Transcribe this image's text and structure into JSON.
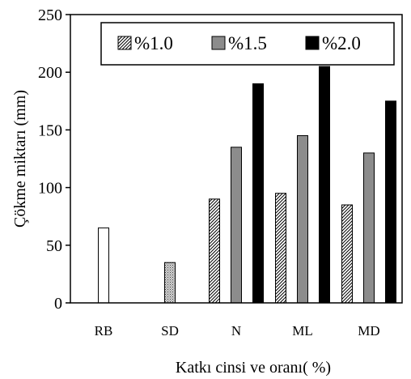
{
  "chart_data": {
    "type": "bar",
    "title": "",
    "xlabel": "Katkı cinsi ve oranı( %)",
    "ylabel": "Çökme miktarı (mm)",
    "ylim": [
      0,
      250
    ],
    "yticks": [
      "0",
      "50",
      "100",
      "150",
      "200",
      "250"
    ],
    "categories": [
      "RB",
      "SD",
      "N",
      "ML",
      "MD"
    ],
    "grid": false,
    "legend_position": "top-right",
    "series": [
      {
        "name": "%1.0",
        "values": [
          null,
          null,
          90,
          95,
          85
        ],
        "pattern": "diagonal-hatch",
        "color": "#000000"
      },
      {
        "name": "%1.5",
        "values": [
          null,
          null,
          135,
          145,
          130
        ],
        "pattern": "solid",
        "color": "#8c8c8c"
      },
      {
        "name": "%2.0",
        "values": [
          null,
          null,
          190,
          205,
          175
        ],
        "pattern": "solid",
        "color": "#000000"
      }
    ],
    "extra_bars": [
      {
        "category": "RB",
        "value": 65,
        "pattern": "white"
      },
      {
        "category": "SD",
        "value": 35,
        "pattern": "dotted"
      }
    ]
  }
}
